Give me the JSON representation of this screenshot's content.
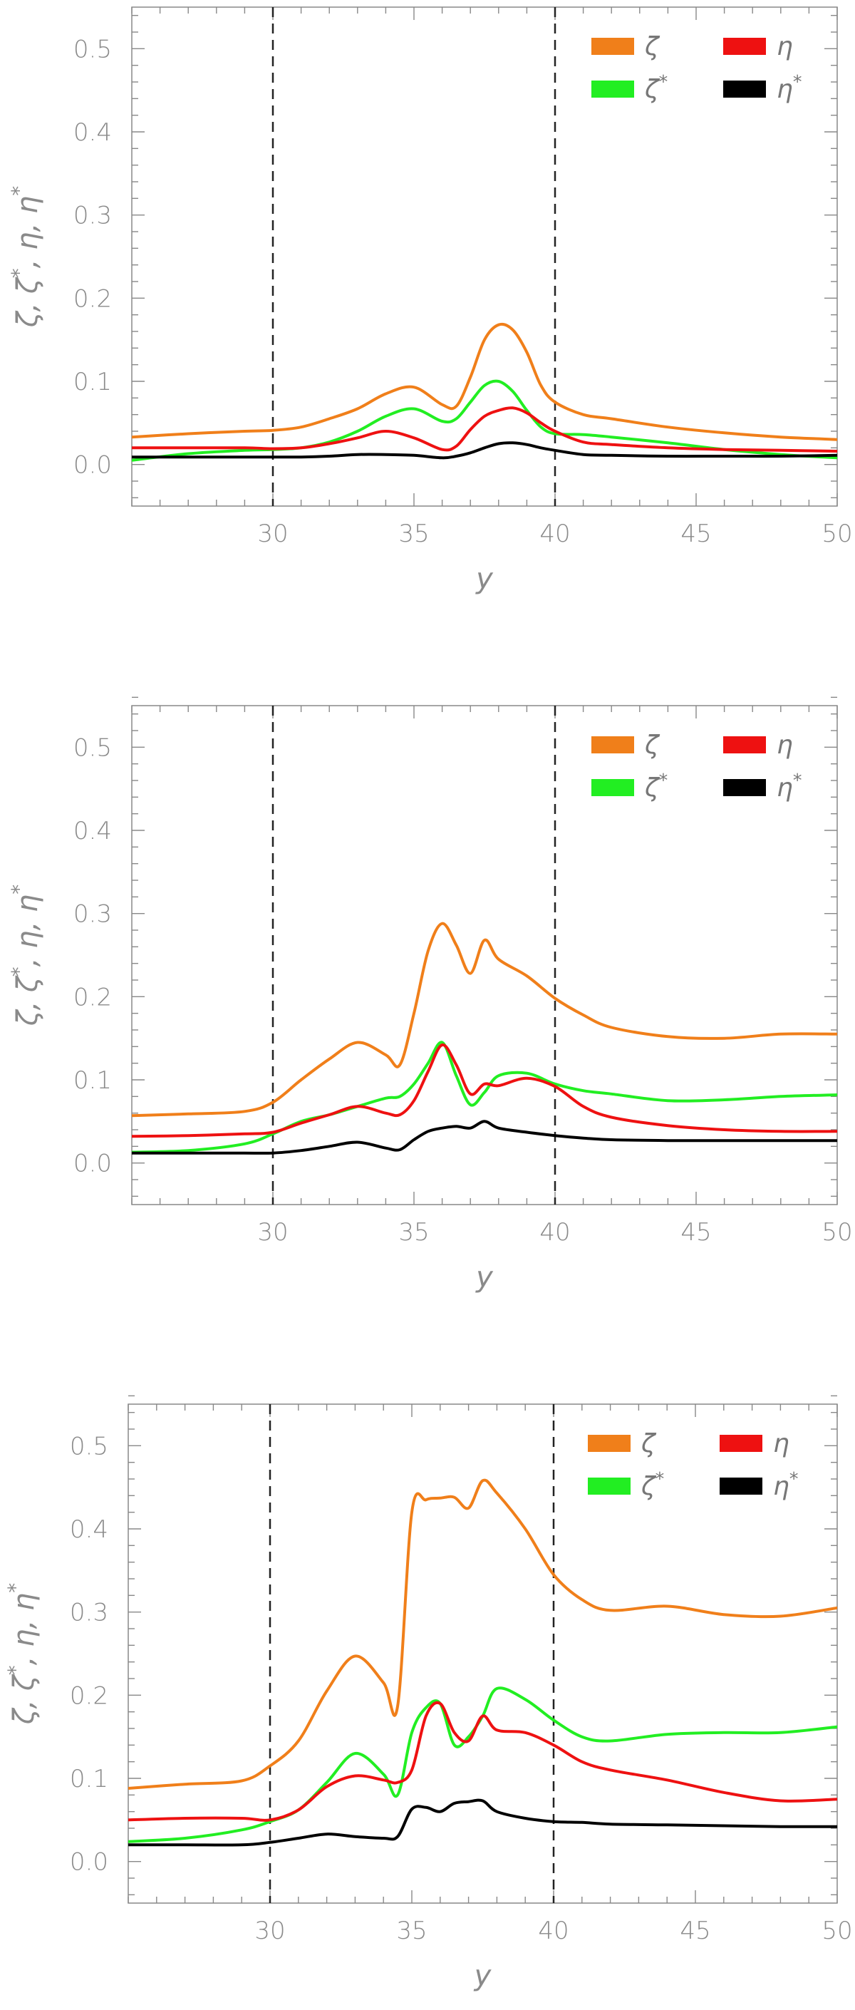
{
  "figure": {
    "panel_count": 3
  },
  "chart_data": [
    {
      "type": "line",
      "xlabel": "y",
      "ylabel": "ζ, ζ*, η, η*",
      "xlim": [
        25,
        50
      ],
      "ylim": [
        -0.05,
        0.55
      ],
      "xticks": [
        30,
        35,
        40,
        45,
        50
      ],
      "yticks": [
        0.0,
        0.1,
        0.2,
        0.3,
        0.4,
        0.5
      ],
      "ytick_labels": [
        "0.0",
        "0.1",
        "0.2",
        "0.3",
        "0.4",
        "0.5"
      ],
      "vlines": [
        30,
        40
      ],
      "grid": false,
      "legend_placement": "top-right",
      "x": [
        25,
        27,
        29,
        30,
        31,
        32,
        33,
        34,
        35,
        36,
        36.5,
        37,
        37.5,
        38,
        38.5,
        39,
        39.5,
        40,
        41,
        42,
        44,
        46,
        48,
        50
      ],
      "series": [
        {
          "name": "ζ",
          "color": "#f07f1a",
          "values": [
            0.033,
            0.037,
            0.04,
            0.041,
            0.045,
            0.055,
            0.067,
            0.085,
            0.093,
            0.072,
            0.07,
            0.105,
            0.15,
            0.168,
            0.162,
            0.135,
            0.095,
            0.075,
            0.06,
            0.055,
            0.045,
            0.038,
            0.033,
            0.03
          ]
        },
        {
          "name": "ζ*",
          "color": "#22ee22",
          "values": [
            0.005,
            0.013,
            0.017,
            0.018,
            0.02,
            0.027,
            0.04,
            0.058,
            0.067,
            0.052,
            0.055,
            0.075,
            0.095,
            0.1,
            0.088,
            0.065,
            0.045,
            0.037,
            0.036,
            0.033,
            0.026,
            0.018,
            0.012,
            0.008
          ]
        },
        {
          "name": "η",
          "color": "#ee1111",
          "values": [
            0.02,
            0.02,
            0.02,
            0.019,
            0.02,
            0.025,
            0.032,
            0.04,
            0.032,
            0.018,
            0.022,
            0.042,
            0.058,
            0.065,
            0.068,
            0.062,
            0.05,
            0.04,
            0.027,
            0.024,
            0.02,
            0.018,
            0.017,
            0.016
          ]
        },
        {
          "name": "η*",
          "color": "#000000",
          "values": [
            0.009,
            0.009,
            0.009,
            0.009,
            0.009,
            0.01,
            0.012,
            0.012,
            0.011,
            0.008,
            0.01,
            0.014,
            0.02,
            0.025,
            0.026,
            0.024,
            0.02,
            0.017,
            0.012,
            0.011,
            0.01,
            0.01,
            0.01,
            0.011
          ]
        }
      ]
    },
    {
      "type": "line",
      "xlabel": "y",
      "ylabel": "ζ, ζ*, η, η*",
      "xlim": [
        25,
        50
      ],
      "ylim": [
        -0.05,
        0.55
      ],
      "xticks": [
        30,
        35,
        40,
        45,
        50
      ],
      "yticks": [
        0.0,
        0.1,
        0.2,
        0.3,
        0.4,
        0.5
      ],
      "ytick_labels": [
        "0.0",
        "0.1",
        "0.2",
        "0.3",
        "0.4",
        "0.5"
      ],
      "vlines": [
        30,
        40
      ],
      "grid": false,
      "legend_placement": "top-right",
      "x": [
        25,
        27,
        29,
        30,
        31,
        32,
        33,
        34,
        34.5,
        35,
        35.5,
        36,
        36.5,
        37,
        37.5,
        38,
        39,
        40,
        41,
        42,
        44,
        46,
        48,
        50
      ],
      "series": [
        {
          "name": "ζ",
          "color": "#f07f1a",
          "values": [
            0.057,
            0.059,
            0.062,
            0.073,
            0.1,
            0.125,
            0.145,
            0.13,
            0.118,
            0.18,
            0.255,
            0.288,
            0.262,
            0.228,
            0.268,
            0.245,
            0.225,
            0.198,
            0.178,
            0.163,
            0.152,
            0.15,
            0.155,
            0.155
          ]
        },
        {
          "name": "ζ*",
          "color": "#22ee22",
          "values": [
            0.013,
            0.015,
            0.023,
            0.035,
            0.05,
            0.058,
            0.068,
            0.078,
            0.08,
            0.095,
            0.12,
            0.145,
            0.105,
            0.07,
            0.085,
            0.105,
            0.108,
            0.095,
            0.087,
            0.083,
            0.075,
            0.076,
            0.08,
            0.082
          ]
        },
        {
          "name": "η",
          "color": "#ee1111",
          "values": [
            0.032,
            0.033,
            0.035,
            0.037,
            0.048,
            0.058,
            0.068,
            0.06,
            0.058,
            0.075,
            0.11,
            0.142,
            0.118,
            0.083,
            0.095,
            0.093,
            0.102,
            0.092,
            0.068,
            0.055,
            0.045,
            0.04,
            0.038,
            0.038
          ]
        },
        {
          "name": "η*",
          "color": "#000000",
          "values": [
            0.012,
            0.012,
            0.012,
            0.012,
            0.015,
            0.02,
            0.025,
            0.018,
            0.016,
            0.028,
            0.038,
            0.042,
            0.044,
            0.042,
            0.05,
            0.042,
            0.037,
            0.033,
            0.03,
            0.028,
            0.027,
            0.027,
            0.027,
            0.027
          ]
        }
      ]
    },
    {
      "type": "line",
      "xlabel": "y",
      "ylabel": "ζ, ζ*, η, η*",
      "xlim": [
        25,
        50
      ],
      "ylim": [
        -0.05,
        0.55
      ],
      "xticks": [
        30,
        35,
        40,
        45,
        50
      ],
      "yticks": [
        0.0,
        0.1,
        0.2,
        0.3,
        0.4,
        0.5
      ],
      "ytick_labels": [
        "0.0",
        "0.1",
        "0.2",
        "0.3",
        "0.4",
        "0.5"
      ],
      "vlines": [
        30,
        40
      ],
      "grid": false,
      "legend_placement": "top-right",
      "x": [
        25,
        27,
        29,
        30,
        31,
        32,
        33,
        34,
        34.5,
        35,
        35.5,
        36,
        36.5,
        37,
        37.5,
        38,
        39,
        40,
        41,
        42,
        44,
        46,
        48,
        50
      ],
      "series": [
        {
          "name": "ζ",
          "color": "#f07f1a",
          "values": [
            0.088,
            0.093,
            0.097,
            0.115,
            0.145,
            0.205,
            0.247,
            0.215,
            0.187,
            0.42,
            0.435,
            0.437,
            0.438,
            0.425,
            0.458,
            0.443,
            0.4,
            0.345,
            0.315,
            0.302,
            0.307,
            0.297,
            0.295,
            0.305
          ]
        },
        {
          "name": "ζ*",
          "color": "#22ee22",
          "values": [
            0.024,
            0.028,
            0.038,
            0.048,
            0.062,
            0.095,
            0.13,
            0.105,
            0.08,
            0.155,
            0.185,
            0.19,
            0.14,
            0.15,
            0.175,
            0.208,
            0.195,
            0.17,
            0.15,
            0.145,
            0.153,
            0.155,
            0.155,
            0.162
          ]
        },
        {
          "name": "η",
          "color": "#ee1111",
          "values": [
            0.05,
            0.052,
            0.052,
            0.05,
            0.062,
            0.09,
            0.103,
            0.098,
            0.095,
            0.11,
            0.175,
            0.19,
            0.155,
            0.145,
            0.175,
            0.158,
            0.155,
            0.14,
            0.12,
            0.11,
            0.098,
            0.083,
            0.073,
            0.075
          ]
        },
        {
          "name": "η*",
          "color": "#000000",
          "values": [
            0.02,
            0.02,
            0.02,
            0.023,
            0.028,
            0.033,
            0.03,
            0.028,
            0.03,
            0.063,
            0.065,
            0.06,
            0.07,
            0.072,
            0.073,
            0.06,
            0.052,
            0.048,
            0.047,
            0.045,
            0.044,
            0.043,
            0.042,
            0.042
          ]
        }
      ]
    }
  ]
}
